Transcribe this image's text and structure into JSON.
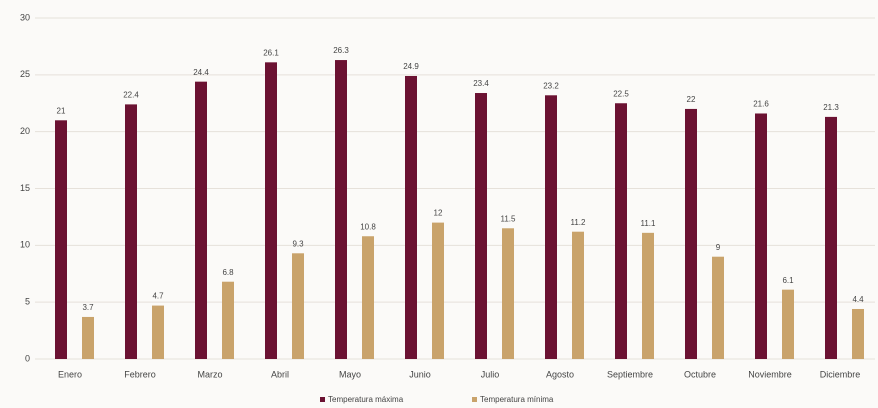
{
  "chart_data": {
    "type": "bar",
    "categories": [
      "Enero",
      "Febrero",
      "Marzo",
      "Abril",
      "Mayo",
      "Junio",
      "Julio",
      "Agosto",
      "Septiembre",
      "Octubre",
      "Noviembre",
      "Diciembre"
    ],
    "series": [
      {
        "name": "Temperatura máxima",
        "color": "#6b1232",
        "values": [
          21,
          22.4,
          24.4,
          26.1,
          26.3,
          24.9,
          23.4,
          23.2,
          22.5,
          22,
          21.6,
          21.3
        ]
      },
      {
        "name": "Temperatura mínima",
        "color": "#c9a36b",
        "values": [
          3.7,
          4.7,
          6.8,
          9.3,
          10.8,
          12,
          11.5,
          11.2,
          11.1,
          9,
          6.1,
          4.4
        ]
      }
    ],
    "ylim": [
      0,
      30
    ],
    "yticks": [
      0,
      5,
      10,
      15,
      20,
      25,
      30
    ],
    "grid": true
  }
}
